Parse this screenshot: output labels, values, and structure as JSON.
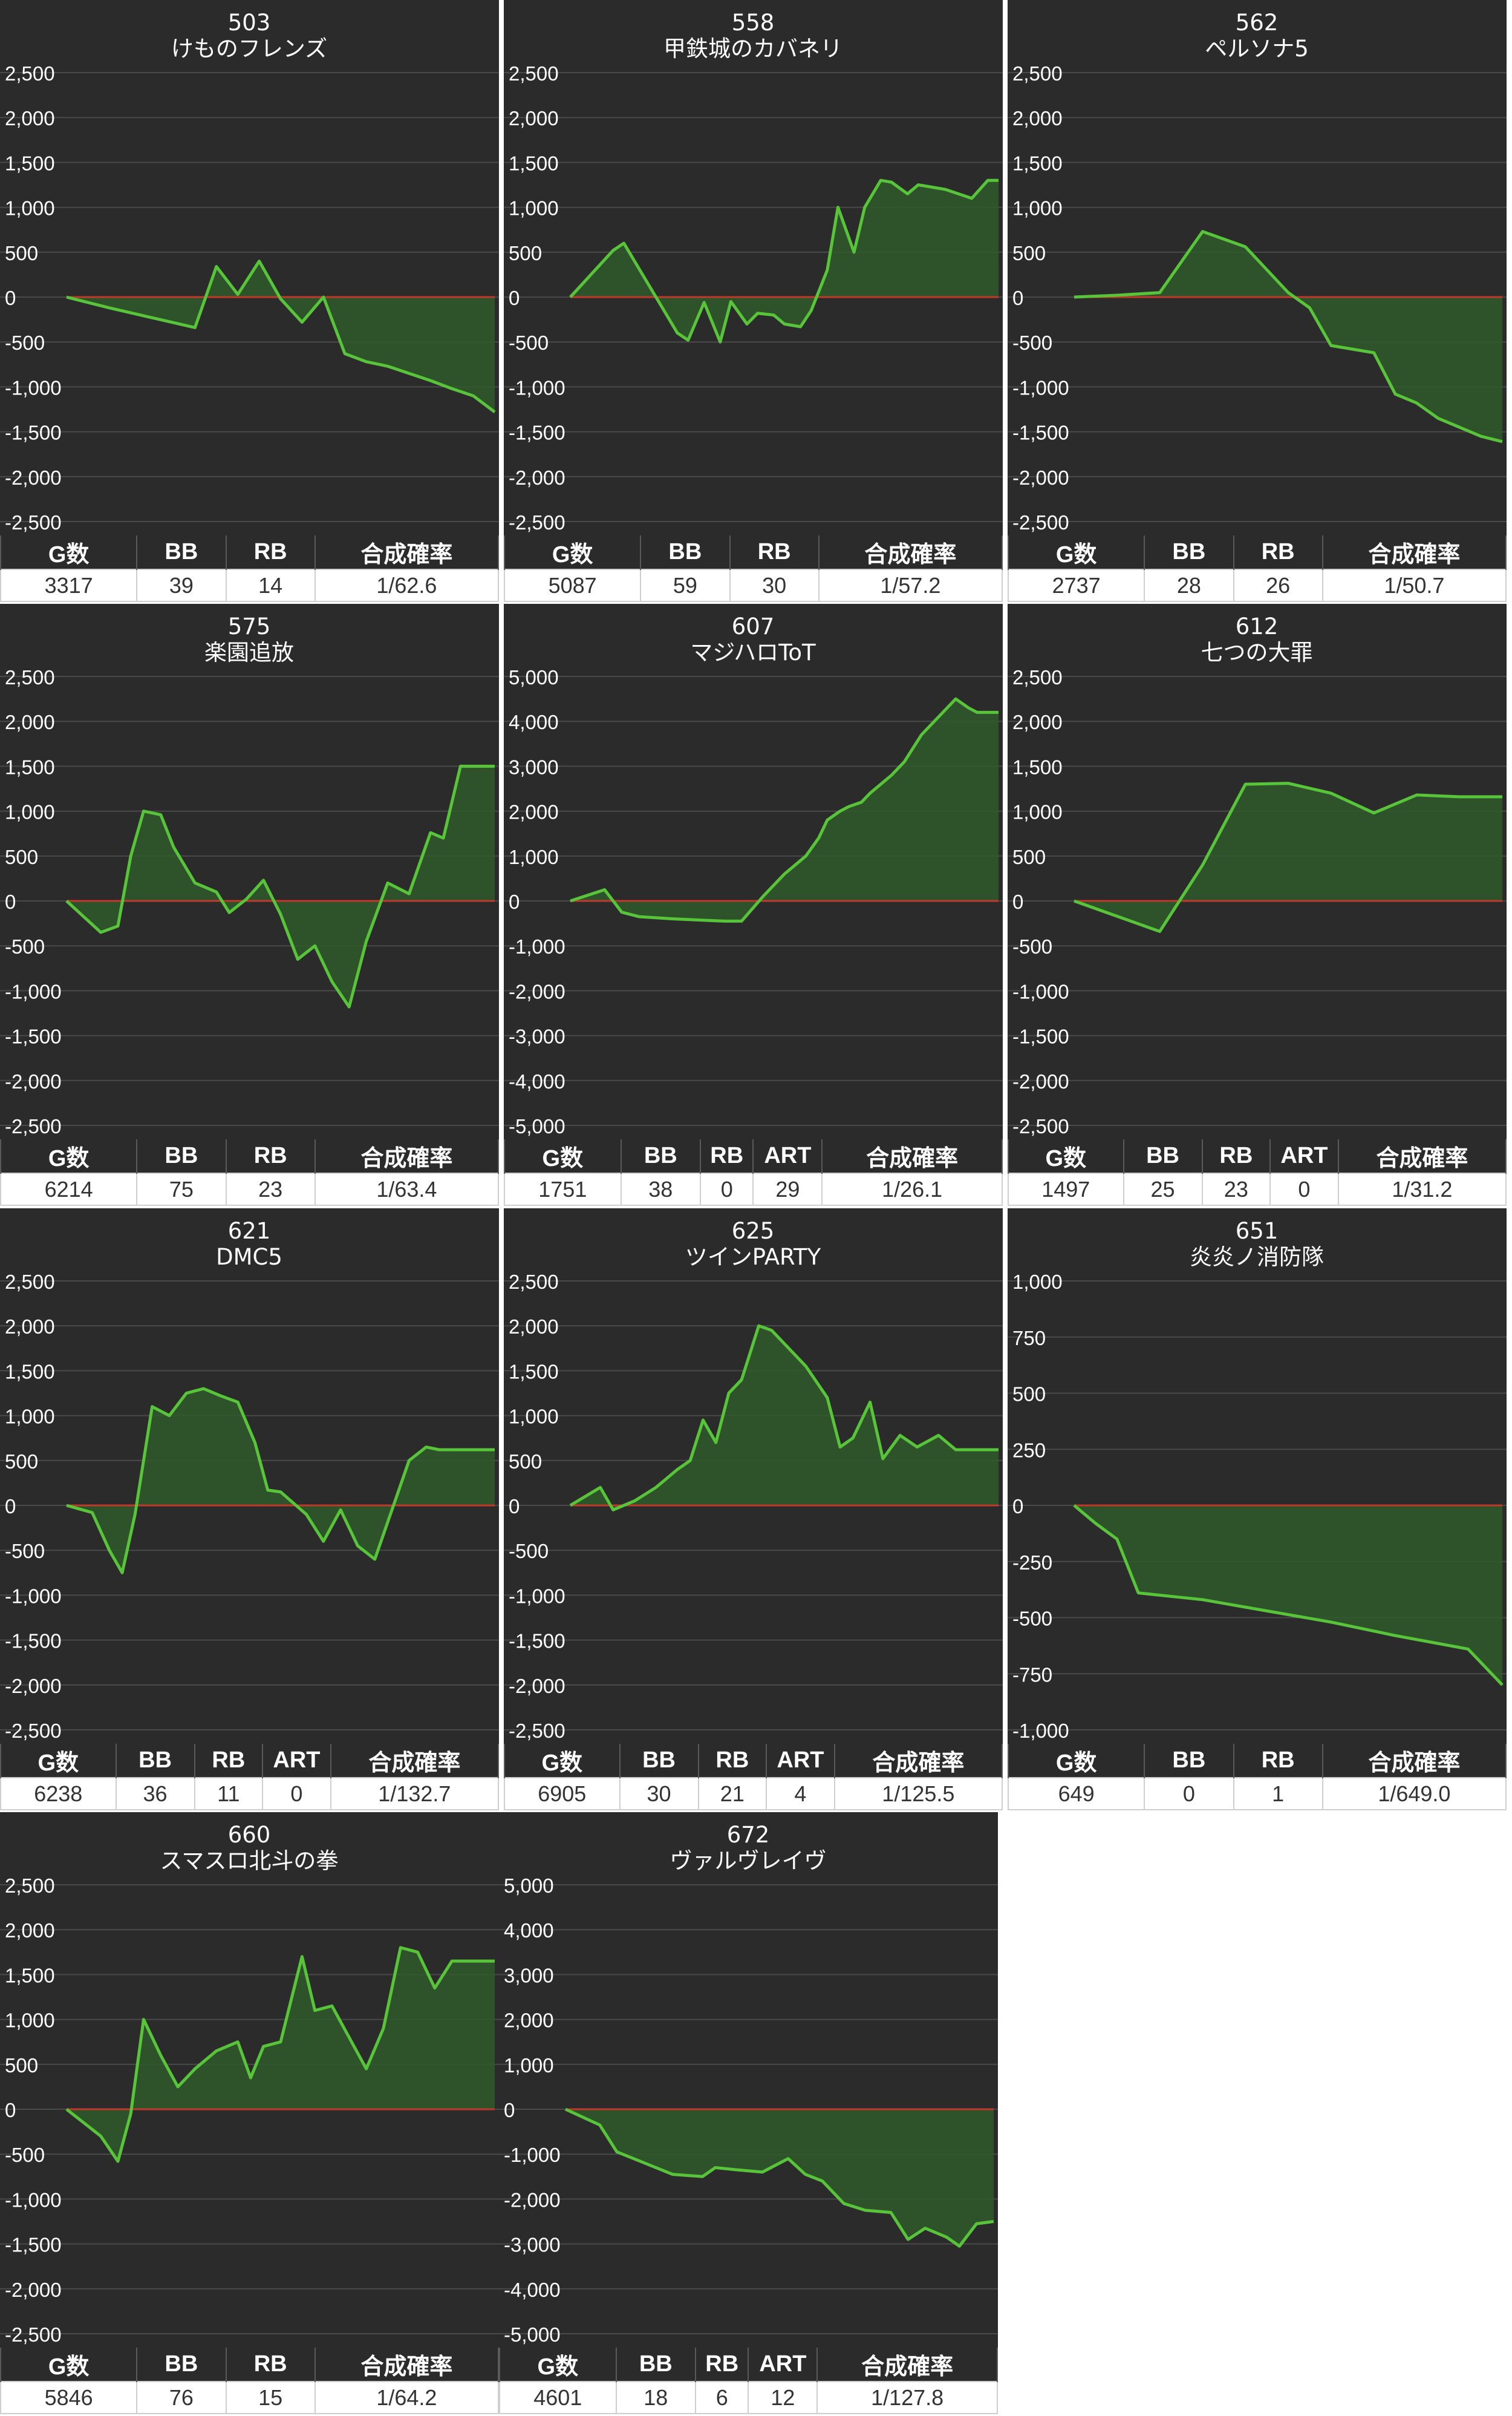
{
  "colors": {
    "panel_bg": "#2b2b2b",
    "grid": "#4a4a4a",
    "zero_line": "#c0392b",
    "series_line": "#57c43a",
    "series_fill": "#2f5a2a",
    "text": "#ffffff"
  },
  "chart_data": [
    {
      "type": "area",
      "machine_no": "503",
      "title": "けものフレンズ",
      "ylim": [
        -2500,
        2500
      ],
      "yticks": [
        "2,500",
        "2,000",
        "1,500",
        "1,000",
        "500",
        "0",
        "-500",
        "-1,000",
        "-1,500",
        "-2,000",
        "-2,500"
      ],
      "x": [
        0,
        10,
        20,
        30,
        35,
        40,
        45,
        50,
        55,
        60,
        65,
        70,
        75,
        80,
        85,
        90,
        95,
        100
      ],
      "values": [
        0,
        -120,
        -230,
        -340,
        340,
        30,
        400,
        -20,
        -280,
        0,
        -630,
        -720,
        -770,
        -850,
        -930,
        -1020,
        -1100,
        -1280
      ],
      "headers": [
        "G数",
        "BB",
        "RB",
        "合成確率"
      ],
      "stats": [
        "3317",
        "39",
        "14",
        "1/62.6"
      ],
      "col_widths": [
        2.6,
        1.7,
        1.7,
        3.5
      ]
    },
    {
      "type": "area",
      "machine_no": "558",
      "title": "甲鉄城のカバネリ",
      "ylim": [
        -2500,
        2500
      ],
      "yticks": [
        "2,500",
        "2,000",
        "1,500",
        "1,000",
        "500",
        "0",
        "-500",
        "-1,000",
        "-1,500",
        "-2,000",
        "-2,500"
      ],
      "x": [
        0,
        8,
        10,
        13,
        17,
        20,
        22,
        25,
        28,
        30,
        33,
        35,
        38,
        40,
        43,
        45,
        48,
        50,
        53,
        55,
        58,
        60,
        63,
        65,
        70,
        75,
        78,
        80
      ],
      "values": [
        0,
        520,
        600,
        300,
        -100,
        -400,
        -480,
        -60,
        -500,
        -50,
        -300,
        -180,
        -200,
        -300,
        -330,
        -150,
        300,
        1000,
        500,
        1000,
        1300,
        1280,
        1150,
        1250,
        1200,
        1100,
        1300,
        1300
      ],
      "headers": [
        "G数",
        "BB",
        "RB",
        "合成確率"
      ],
      "stats": [
        "5087",
        "59",
        "30",
        "1/57.2"
      ],
      "col_widths": [
        2.6,
        1.7,
        1.7,
        3.5
      ]
    },
    {
      "type": "area",
      "machine_no": "562",
      "title": "ペルソナ5",
      "ylim": [
        -2500,
        2500
      ],
      "yticks": [
        "2,500",
        "2,000",
        "1,500",
        "1,000",
        "500",
        "0",
        "-500",
        "-1,000",
        "-1,500",
        "-2,000",
        "-2,500"
      ],
      "x": [
        0,
        10,
        20,
        30,
        40,
        50,
        55,
        60,
        70,
        75,
        80,
        85,
        90,
        95,
        100
      ],
      "values": [
        0,
        20,
        50,
        730,
        560,
        50,
        -120,
        -540,
        -620,
        -1080,
        -1180,
        -1350,
        -1450,
        -1550,
        -1610
      ],
      "headers": [
        "G数",
        "BB",
        "RB",
        "合成確率"
      ],
      "stats": [
        "2737",
        "28",
        "26",
        "1/50.7"
      ],
      "col_widths": [
        2.6,
        1.7,
        1.7,
        3.5
      ]
    },
    {
      "type": "area",
      "machine_no": "575",
      "title": "楽園追放",
      "ylim": [
        -2500,
        2500
      ],
      "yticks": [
        "2,500",
        "2,000",
        "1,500",
        "1,000",
        "500",
        "0",
        "-500",
        "-1,000",
        "-1,500",
        "-2,000",
        "-2,500"
      ],
      "x": [
        0,
        8,
        12,
        15,
        18,
        22,
        25,
        30,
        35,
        38,
        42,
        46,
        50,
        54,
        58,
        62,
        66,
        70,
        75,
        80,
        85,
        88,
        92,
        95,
        100
      ],
      "values": [
        0,
        -350,
        -280,
        500,
        1000,
        960,
        600,
        200,
        100,
        -130,
        20,
        230,
        -150,
        -650,
        -500,
        -900,
        -1180,
        -450,
        200,
        80,
        760,
        700,
        1500,
        1500,
        1500
      ],
      "headers": [
        "G数",
        "BB",
        "RB",
        "合成確率"
      ],
      "stats": [
        "6214",
        "75",
        "23",
        "1/63.4"
      ],
      "col_widths": [
        2.6,
        1.7,
        1.7,
        3.5
      ]
    },
    {
      "type": "area",
      "machine_no": "607",
      "title": "マジハロToT",
      "ylim": [
        -5000,
        5000
      ],
      "yticks": [
        "5,000",
        "4,000",
        "3,000",
        "2,000",
        "1,000",
        "0",
        "-1,000",
        "-2,000",
        "-3,000",
        "-4,000",
        "-5,000"
      ],
      "x": [
        0,
        8,
        12,
        16,
        24,
        36,
        40,
        45,
        50,
        55,
        58,
        60,
        63,
        65,
        68,
        70,
        75,
        78,
        80,
        82,
        85,
        88,
        90,
        93,
        95,
        100
      ],
      "values": [
        0,
        250,
        -250,
        -350,
        -400,
        -450,
        -450,
        100,
        600,
        1000,
        1400,
        1800,
        2000,
        2100,
        2200,
        2400,
        2800,
        3100,
        3400,
        3700,
        4000,
        4300,
        4500,
        4300,
        4200,
        4200
      ],
      "headers": [
        "G数",
        "BB",
        "RB",
        "ART",
        "合成確率"
      ],
      "stats": [
        "1751",
        "38",
        "0",
        "29",
        "1/26.1"
      ],
      "col_widths": [
        2.2,
        1.5,
        1.0,
        1.3,
        3.4
      ]
    },
    {
      "type": "area",
      "machine_no": "612",
      "title": "七つの大罪",
      "ylim": [
        -2500,
        2500
      ],
      "yticks": [
        "2,500",
        "2,000",
        "1,500",
        "1,000",
        "500",
        "0",
        "-500",
        "-1,000",
        "-1,500",
        "-2,000",
        "-2,500"
      ],
      "x": [
        0,
        10,
        20,
        30,
        40,
        50,
        60,
        70,
        80,
        90,
        100
      ],
      "values": [
        0,
        -170,
        -340,
        400,
        1300,
        1310,
        1200,
        980,
        1180,
        1160,
        1160
      ],
      "headers": [
        "G数",
        "BB",
        "RB",
        "ART",
        "合成確率"
      ],
      "stats": [
        "1497",
        "25",
        "23",
        "0",
        "1/31.2"
      ],
      "col_widths": [
        2.2,
        1.5,
        1.3,
        1.3,
        3.2
      ]
    },
    {
      "type": "area",
      "machine_no": "621",
      "title": "DMC5",
      "ylim": [
        -2500,
        2500
      ],
      "yticks": [
        "2,500",
        "2,000",
        "1,500",
        "1,000",
        "500",
        "0",
        "-500",
        "-1,000",
        "-1,500",
        "-2,000",
        "-2,500"
      ],
      "x": [
        0,
        6,
        10,
        13,
        16,
        20,
        24,
        28,
        32,
        36,
        40,
        44,
        47,
        50,
        56,
        60,
        64,
        68,
        72,
        76,
        80,
        84,
        87,
        90,
        94,
        100
      ],
      "values": [
        0,
        -80,
        -500,
        -750,
        -100,
        1100,
        1000,
        1250,
        1300,
        1220,
        1150,
        700,
        170,
        150,
        -100,
        -400,
        -50,
        -450,
        -600,
        -50,
        500,
        650,
        620,
        620,
        620,
        620
      ],
      "headers": [
        "G数",
        "BB",
        "RB",
        "ART",
        "合成確率"
      ],
      "stats": [
        "6238",
        "36",
        "11",
        "0",
        "1/132.7"
      ],
      "col_widths": [
        2.2,
        1.5,
        1.3,
        1.3,
        3.2
      ]
    },
    {
      "type": "area",
      "machine_no": "625",
      "title": "ツインPARTY",
      "ylim": [
        -2500,
        2500
      ],
      "yticks": [
        "2,500",
        "2,000",
        "1,500",
        "1,000",
        "500",
        "0",
        "-500",
        "-1,000",
        "-1,500",
        "-2,000",
        "-2,500"
      ],
      "x": [
        0,
        7,
        10,
        15,
        20,
        25,
        28,
        31,
        34,
        37,
        40,
        44,
        47,
        50,
        55,
        60,
        63,
        66,
        70,
        73,
        77,
        81,
        86,
        90,
        94,
        100
      ],
      "values": [
        0,
        200,
        -50,
        50,
        200,
        400,
        500,
        950,
        700,
        1250,
        1400,
        2000,
        1950,
        1800,
        1550,
        1200,
        650,
        750,
        1150,
        520,
        780,
        650,
        780,
        620,
        620,
        620
      ],
      "headers": [
        "G数",
        "BB",
        "RB",
        "ART",
        "合成確率"
      ],
      "stats": [
        "6905",
        "30",
        "21",
        "4",
        "1/125.5"
      ],
      "col_widths": [
        2.2,
        1.5,
        1.3,
        1.3,
        3.2
      ]
    },
    {
      "type": "area",
      "machine_no": "651",
      "title": "炎炎ノ消防隊",
      "ylim": [
        -1000,
        1000
      ],
      "yticks": [
        "1,000",
        "750",
        "500",
        "250",
        "0",
        "-250",
        "-500",
        "-750",
        "-1,000"
      ],
      "x": [
        0,
        5,
        10,
        15,
        30,
        45,
        60,
        75,
        92,
        100
      ],
      "values": [
        0,
        -80,
        -150,
        -390,
        -420,
        -470,
        -520,
        -580,
        -640,
        -800
      ],
      "headers": [
        "G数",
        "BB",
        "RB",
        "合成確率"
      ],
      "stats": [
        "649",
        "0",
        "1",
        "1/649.0"
      ],
      "col_widths": [
        2.6,
        1.7,
        1.7,
        3.5
      ]
    },
    {
      "type": "area",
      "machine_no": "660",
      "title": "スマスロ北斗の拳",
      "ylim": [
        -2500,
        2500
      ],
      "yticks": [
        "2,500",
        "2,000",
        "1,500",
        "1,000",
        "500",
        "0",
        "-500",
        "-1,000",
        "-1,500",
        "-2,000",
        "-2,500"
      ],
      "x": [
        0,
        8,
        12,
        15,
        18,
        22,
        26,
        30,
        35,
        40,
        43,
        46,
        50,
        55,
        58,
        62,
        66,
        70,
        74,
        78,
        82,
        86,
        90,
        94,
        100
      ],
      "values": [
        0,
        -300,
        -580,
        -50,
        1000,
        600,
        250,
        450,
        650,
        750,
        350,
        700,
        750,
        1700,
        1100,
        1150,
        800,
        450,
        900,
        1800,
        1750,
        1350,
        1650,
        1650,
        1650
      ],
      "headers": [
        "G数",
        "BB",
        "RB",
        "合成確率"
      ],
      "stats": [
        "5846",
        "76",
        "15",
        "1/64.2"
      ],
      "col_widths": [
        2.6,
        1.7,
        1.7,
        3.5
      ]
    },
    {
      "type": "area",
      "machine_no": "672",
      "title": "ヴァルヴレイヴ",
      "ylim": [
        -5000,
        5000
      ],
      "yticks": [
        "5,000",
        "4,000",
        "3,000",
        "2,000",
        "1,000",
        "0",
        "-1,000",
        "-2,000",
        "-3,000",
        "-4,000",
        "-5,000"
      ],
      "x": [
        0,
        8,
        12,
        25,
        32,
        35,
        40,
        46,
        52,
        56,
        60,
        65,
        70,
        76,
        80,
        84,
        89,
        92,
        96,
        100
      ],
      "values": [
        0,
        -350,
        -950,
        -1450,
        -1500,
        -1300,
        -1350,
        -1400,
        -1100,
        -1450,
        -1600,
        -2100,
        -2250,
        -2300,
        -2900,
        -2650,
        -2850,
        -3050,
        -2550,
        -2500
      ],
      "headers": [
        "G数",
        "BB",
        "RB",
        "ART",
        "合成確率"
      ],
      "stats": [
        "4601",
        "18",
        "6",
        "12",
        "1/127.8"
      ],
      "col_widths": [
        2.2,
        1.5,
        1.0,
        1.3,
        3.4
      ]
    }
  ]
}
